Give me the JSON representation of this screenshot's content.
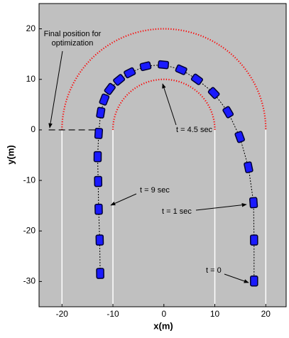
{
  "chart_data": {
    "type": "line",
    "xlabel": "x(m)",
    "ylabel": "y(m)",
    "xlim": [
      -24.5,
      24
    ],
    "ylim": [
      -35,
      25
    ],
    "xticks": [
      -20,
      -10,
      0,
      10,
      20
    ],
    "yticks": [
      -30,
      -20,
      -10,
      0,
      10,
      20
    ],
    "background": "#c0c0c0",
    "x": [
      17.7,
      17.7,
      17.6,
      16.6,
      14.9,
      12.6,
      9.8,
      6.5,
      3.4,
      -0.1,
      -3.6,
      -6.7,
      -8.8,
      -10.6,
      -11.7,
      -12.4,
      -12.8,
      -13.0,
      -12.9,
      -12.8,
      -12.6,
      -12.5
    ],
    "series": [
      {
        "color": "#1a1aff",
        "values": [
          -29.9,
          -21.8,
          -14.4,
          -7.4,
          -1.4,
          3.5,
          7.3,
          10.0,
          11.9,
          12.9,
          12.6,
          11.3,
          9.9,
          8.1,
          6.0,
          3.4,
          -0.7,
          -5.3,
          -10.2,
          -15.7,
          -21.8,
          -28.4
        ]
      }
    ],
    "track": [
      {
        "kind": "line",
        "x": [
          -20,
          -20
        ],
        "y": [
          -35,
          0
        ],
        "color": "#ffffff"
      },
      {
        "kind": "line",
        "x": [
          -10,
          -10
        ],
        "y": [
          -35,
          0
        ],
        "color": "#ffffff"
      },
      {
        "kind": "line",
        "x": [
          10,
          10
        ],
        "y": [
          -35,
          0
        ],
        "color": "#ffffff"
      },
      {
        "kind": "line",
        "x": [
          20,
          20
        ],
        "y": [
          -35,
          0
        ],
        "color": "#ffffff"
      },
      {
        "kind": "arc",
        "cx": 0,
        "cy": 0,
        "r": 10,
        "color": "#ff0000"
      },
      {
        "kind": "arc",
        "cx": 0,
        "cy": 0,
        "r": 20,
        "color": "#ff0000"
      },
      {
        "kind": "dashed",
        "x": [
          -22.6,
          -13.0
        ],
        "y": [
          0,
          0
        ],
        "color": "#000000"
      }
    ],
    "annotations": [
      "Final position for optimization",
      "t = 4.5 sec",
      "t = 9 sec",
      "t = 1 sec",
      "t = 0"
    ]
  }
}
